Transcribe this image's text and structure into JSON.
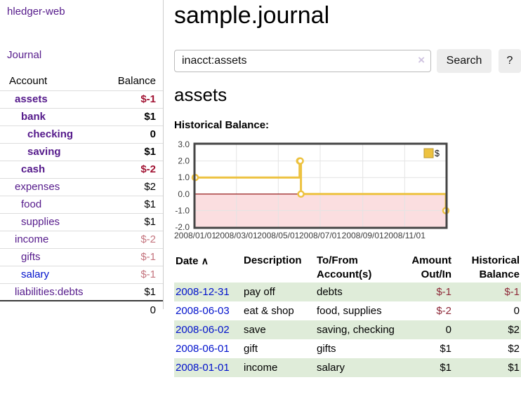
{
  "sidebar": {
    "brand": "hledger-web",
    "nav": {
      "journal": "Journal"
    },
    "headers": {
      "account": "Account",
      "balance": "Balance"
    },
    "accounts": [
      {
        "name": "assets",
        "balance": "$-1"
      },
      {
        "name": "bank",
        "balance": "$1"
      },
      {
        "name": "checking",
        "balance": "0"
      },
      {
        "name": "saving",
        "balance": "$1"
      },
      {
        "name": "cash",
        "balance": "$-2"
      },
      {
        "name": "expenses",
        "balance": "$2"
      },
      {
        "name": "food",
        "balance": "$1"
      },
      {
        "name": "supplies",
        "balance": "$1"
      },
      {
        "name": "income",
        "balance": "$-2"
      },
      {
        "name": "gifts",
        "balance": "$-1"
      },
      {
        "name": "salary",
        "balance": "$-1"
      },
      {
        "name": "liabilities:debts",
        "balance": "$1"
      }
    ],
    "total": "0"
  },
  "header": {
    "title": "sample.journal"
  },
  "search": {
    "value": "inacct:assets",
    "clear_icon": "×",
    "search_label": "Search",
    "help_label": "?"
  },
  "account_page": {
    "heading": "assets",
    "chart_title": "Historical Balance:"
  },
  "chart_data": {
    "type": "line",
    "title": "Historical Balance",
    "steps": true,
    "series": [
      {
        "name": "$",
        "color": "#edc240",
        "points": [
          [
            "2008-01-01",
            1
          ],
          [
            "2008-06-01",
            2
          ],
          [
            "2008-06-02",
            2
          ],
          [
            "2008-06-03",
            0
          ],
          [
            "2008-12-31",
            -1
          ]
        ]
      }
    ],
    "x_range": [
      "2008-01-01",
      "2008-12-31"
    ],
    "ylim": [
      -2,
      3
    ],
    "y_ticks": [
      "3.0",
      "2.0",
      "1.0",
      "0.0",
      "-1.0",
      "-2.0"
    ],
    "x_ticks": [
      "2008/01/01",
      "2008/03/01",
      "2008/05/01",
      "2008/07/01",
      "2008/09/01",
      "2008/11/01"
    ],
    "grid": true,
    "legend_position": "top-right",
    "negative_region_color": "#fbdee0",
    "zero_line_color": "#8b0000",
    "border_color": "#454545",
    "grid_color": "#e4e4e4"
  },
  "register": {
    "headers": {
      "date": "Date",
      "sort_icon": "∧",
      "description": "Description",
      "accounts": "To/From Account(s)",
      "amount": "Amount Out/In",
      "balance": "Historical Balance"
    },
    "rows": [
      {
        "date": "2008-12-31",
        "description": "pay off",
        "accounts": "debts",
        "amount": "$-1",
        "balance": "$-1"
      },
      {
        "date": "2008-06-03",
        "description": "eat & shop",
        "accounts": "food, supplies",
        "amount": "$-2",
        "balance": "0"
      },
      {
        "date": "2008-06-02",
        "description": "save",
        "accounts": "saving, checking",
        "amount": "0",
        "balance": "$2"
      },
      {
        "date": "2008-06-01",
        "description": "gift",
        "accounts": "gifts",
        "amount": "$1",
        "balance": "$2"
      },
      {
        "date": "2008-01-01",
        "description": "income",
        "accounts": "salary",
        "amount": "$1",
        "balance": "$1"
      }
    ]
  },
  "colors": {
    "link_purple": "#551a8b",
    "link_blue": "#0011cc",
    "negative_strong": "#a11232",
    "negative_light": "#c4747e",
    "negative_register": "#8e2938",
    "row_shade_green": "#dfecd9",
    "chart_line_gold": "#edc240"
  }
}
